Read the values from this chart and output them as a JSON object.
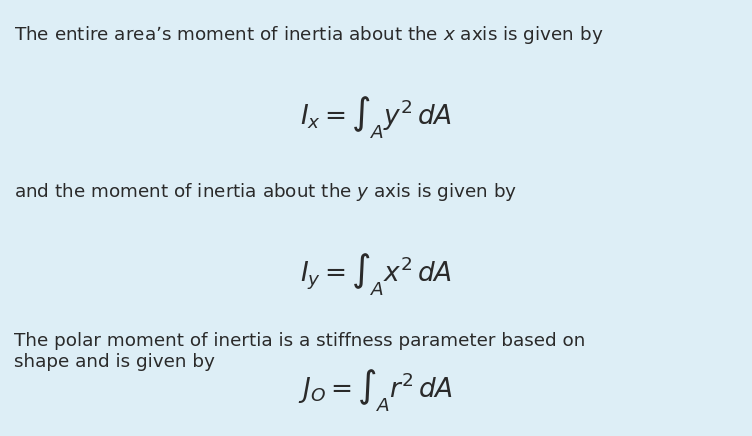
{
  "background_color": "#ddeef6",
  "text_color": "#2a2a2a",
  "fig_width": 7.52,
  "fig_height": 4.36,
  "dpi": 100,
  "body_fontsize": 13.2,
  "math_fontsize": 19,
  "items": [
    {
      "type": "text",
      "xfig": 0.018,
      "yfig": 0.945,
      "text": "The entire area’s moment of inertia about the $x$ axis is given by",
      "ha": "left",
      "va": "top"
    },
    {
      "type": "math",
      "xfig": 0.5,
      "yfig": 0.785,
      "text": "$I_x = \\int_A y^2\\, dA$",
      "ha": "center",
      "va": "top"
    },
    {
      "type": "text",
      "xfig": 0.018,
      "yfig": 0.585,
      "text": "and the moment of inertia about the $y$ axis is given by",
      "ha": "left",
      "va": "top"
    },
    {
      "type": "math",
      "xfig": 0.5,
      "yfig": 0.425,
      "text": "$I_y = \\int_A x^2\\, dA$",
      "ha": "center",
      "va": "top"
    },
    {
      "type": "text",
      "xfig": 0.018,
      "yfig": 0.238,
      "text": "The polar moment of inertia is a stiffness parameter based on\nshape and is given by",
      "ha": "left",
      "va": "top"
    },
    {
      "type": "math",
      "xfig": 0.5,
      "yfig": 0.052,
      "text": "$J_O = \\int_A r^2\\, dA$",
      "ha": "center",
      "va": "bottom"
    }
  ]
}
